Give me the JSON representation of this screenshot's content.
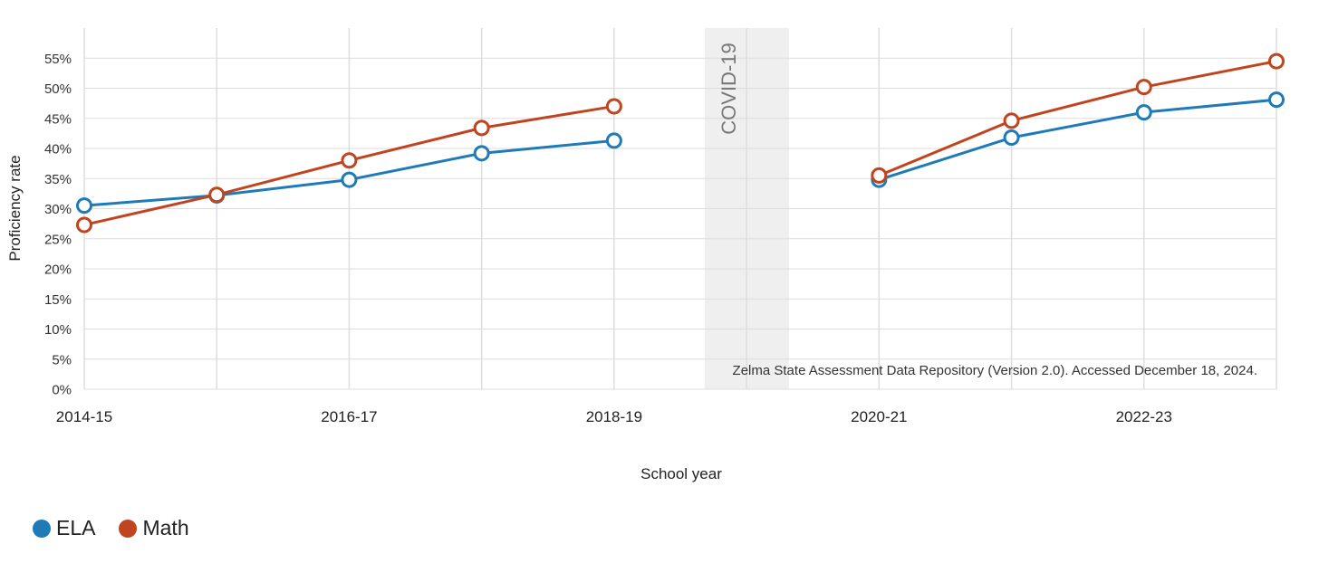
{
  "chart_data": {
    "type": "line",
    "xlabel": "School year",
    "ylabel": "Proficiency rate",
    "x": [
      "2014-15",
      "2015-16",
      "2016-17",
      "2017-18",
      "2018-19",
      "2019-20",
      "2020-21",
      "2021-22",
      "2022-23",
      "2023-24"
    ],
    "x_tick_labels": [
      "2014-15",
      "2016-17",
      "2018-19",
      "2020-21",
      "2022-23"
    ],
    "y_ticks": [
      "0%",
      "5%",
      "10%",
      "15%",
      "20%",
      "25%",
      "30%",
      "35%",
      "40%",
      "45%",
      "50%",
      "55%"
    ],
    "ylim": [
      0,
      55
    ],
    "grid": true,
    "legend_position": "bottom-left",
    "series": [
      {
        "name": "ELA",
        "color": "#1f7ab8",
        "values": [
          30.5,
          32.2,
          34.8,
          39.2,
          41.3,
          null,
          34.8,
          41.8,
          46.0,
          48.1
        ]
      },
      {
        "name": "Math",
        "color": "#c0441e",
        "values": [
          27.3,
          32.3,
          38.0,
          43.4,
          47.0,
          null,
          35.5,
          44.6,
          50.2,
          54.5
        ]
      }
    ],
    "annotations": {
      "covid_band_label": "COVID-19",
      "covid_band_year": "2019-20",
      "source": "Zelma State Assessment Data Repository (Version 2.0). Accessed December 18, 2024."
    }
  }
}
